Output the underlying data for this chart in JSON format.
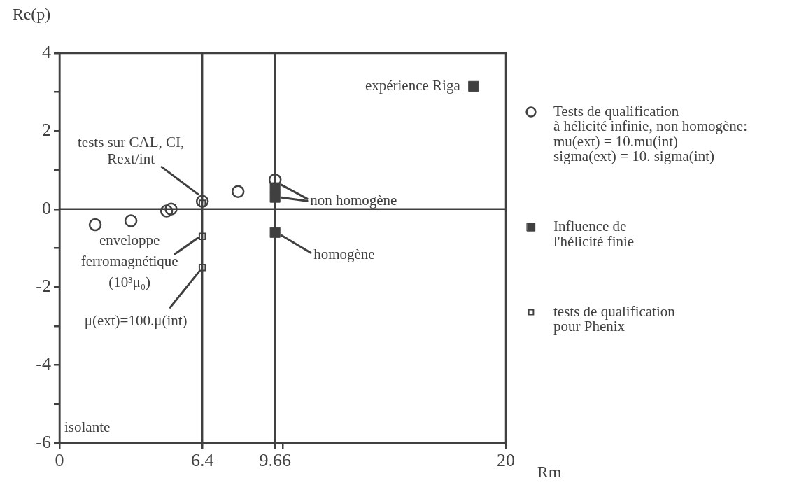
{
  "chart_data": {
    "type": "scatter",
    "xlabel": "Rm",
    "ylabel": "Re(p)",
    "xlim": [
      0,
      20
    ],
    "xticks": [
      0,
      6.4,
      9.66,
      {
        "value": 10,
        "label": null
      },
      20
    ],
    "ylim": [
      -6,
      4
    ],
    "yticks": [
      -6,
      {
        "value": -5,
        "label": null
      },
      -4,
      {
        "value": -3,
        "label": null
      },
      -2,
      {
        "value": -1,
        "label": null
      },
      0,
      {
        "value": 1,
        "label": null
      },
      2,
      {
        "value": 3,
        "label": null
      },
      4
    ],
    "series": [
      {
        "name": "Tests de qualification\nà hélicité infinie, non homogène:\nmu(ext) = 10.mu(int)\nsigma(ext) = 10. sigma(int)",
        "color": "#404040",
        "marker": "circle",
        "x": [
          1.6,
          3.2,
          4.8,
          5.0,
          6.4,
          8.0,
          9.66
        ],
        "values": [
          -0.4,
          -0.3,
          -0.05,
          0,
          0.2,
          0.45,
          0.75
        ]
      },
      {
        "name": "Influence de\nl'hélicité finie",
        "color": "#404040",
        "marker": "square",
        "x": [
          9.66,
          9.66,
          9.66,
          18.55
        ],
        "values": [
          0.55,
          0.3,
          -0.6,
          3.15
        ]
      },
      {
        "name": "tests de qualification\npour Phenix",
        "color": "#404040",
        "marker": "square",
        "x": [
          6.4,
          6.4,
          6.4
        ],
        "values": [
          0.15,
          -0.7,
          -1.5
        ]
      }
    ],
    "ref_lines": [
      {
        "axis": "x",
        "value": 6.4
      },
      {
        "axis": "x",
        "value": 9.66
      },
      {
        "axis": "y",
        "value": 0
      }
    ],
    "annotations": [
      {
        "text": "expérience Riga",
        "x": 18.55,
        "y": 3.15
      },
      {
        "text": "tests sur CAL, CI, Rext/int",
        "x": 6.4,
        "y": 0.2
      },
      {
        "text": "non homogène",
        "x": 9.66,
        "y": 0.55
      },
      {
        "text": "enveloppe\nferromagnétique\n(10³μ₀)",
        "x": 6.4,
        "y": -0.7
      },
      {
        "text": "homogène",
        "x": 9.66,
        "y": -0.6
      },
      {
        "text": "μ(ext)=100.μ(int)",
        "x": 6.4,
        "y": -1.5
      },
      "isolante"
    ],
    "legend": "right"
  }
}
